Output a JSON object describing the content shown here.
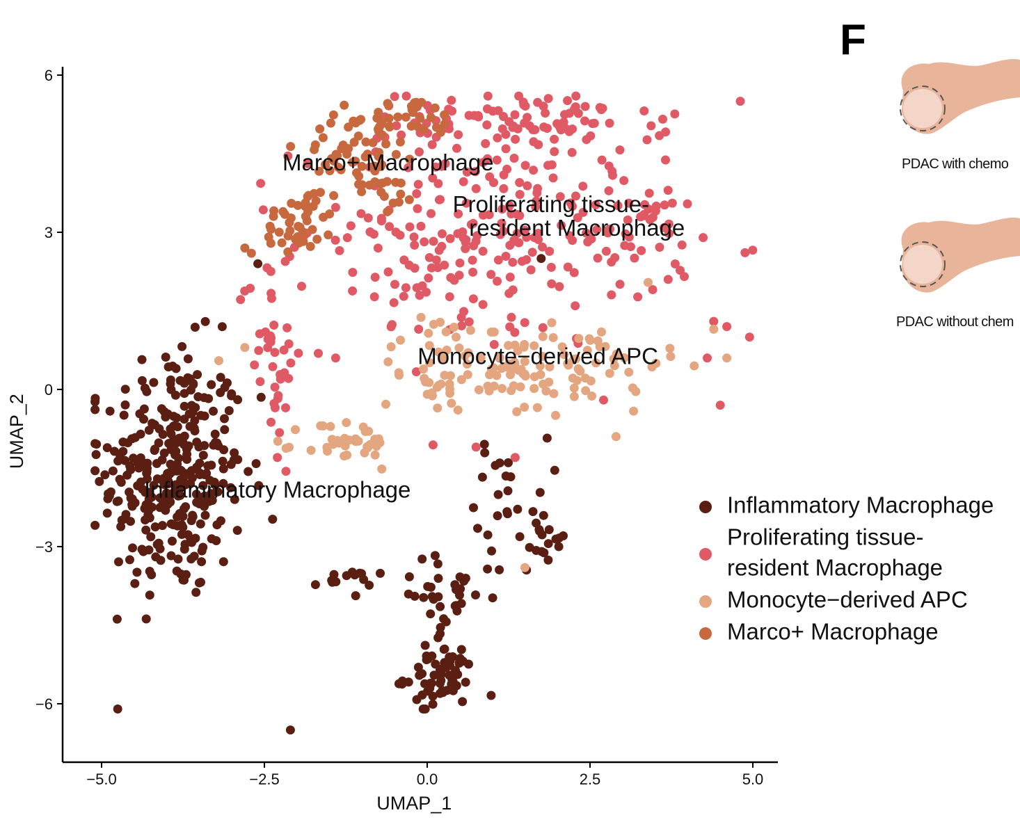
{
  "chart_data": {
    "type": "scatter",
    "title": "",
    "xlabel": "UMAP_1",
    "ylabel": "UMAP_2",
    "xlim": [
      -5.5,
      5.5
    ],
    "ylim": [
      -7.3,
      6.2
    ],
    "x_ticks": [
      -5.0,
      -2.5,
      0.0,
      2.5,
      5.0
    ],
    "x_tick_labels": [
      "−5.0",
      "−2.5",
      "0.0",
      "2.5",
      "5.0"
    ],
    "y_ticks": [
      6,
      3,
      0,
      -3,
      -6
    ],
    "y_tick_labels": [
      "6",
      "3",
      "0",
      "−3",
      "−6"
    ],
    "grid": false,
    "legend_position": "right",
    "series": [
      {
        "name": "Inflammatory Macrophage",
        "color": "#5a1e12",
        "regions": [
          {
            "cx": -3.9,
            "cy": -1.6,
            "sx": 0.55,
            "sy": 1.2,
            "n": 330
          },
          {
            "cx": 1.3,
            "cy": -2.0,
            "sx": 0.28,
            "sy": 0.55,
            "n": 28
          },
          {
            "cx": 1.85,
            "cy": -3.0,
            "sx": 0.2,
            "sy": 0.25,
            "n": 12
          },
          {
            "cx": -1.3,
            "cy": -3.65,
            "sx": 0.22,
            "sy": 0.1,
            "n": 14
          },
          {
            "cx": 0.2,
            "cy": -5.5,
            "sx": 0.28,
            "sy": 0.3,
            "n": 55
          },
          {
            "cx": 0.25,
            "cy": -4.6,
            "sx": 0.12,
            "sy": 0.4,
            "n": 18
          },
          {
            "cx": 0.4,
            "cy": -3.7,
            "sx": 0.7,
            "sy": 0.25,
            "n": 22
          }
        ],
        "points": [
          [
            -2.1,
            -6.5
          ],
          [
            1.75,
            2.5
          ],
          [
            -2.6,
            2.4
          ],
          [
            -2.55,
            -0.15
          ]
        ]
      },
      {
        "name": "Proliferating tissue-\nresident Macrophage",
        "color": "#e05a66",
        "regions": [
          {
            "cx": 1.5,
            "cy": 5.1,
            "sx": 1.1,
            "sy": 0.3,
            "n": 95
          },
          {
            "cx": 0.8,
            "cy": 2.8,
            "sx": 1.4,
            "sy": 1.0,
            "n": 230
          },
          {
            "cx": 3.3,
            "cy": 3.2,
            "sx": 0.4,
            "sy": 0.5,
            "n": 30
          },
          {
            "cx": -2.4,
            "cy": 0.8,
            "sx": 0.25,
            "sy": 0.9,
            "n": 35
          }
        ],
        "points": [
          [
            4.4,
            1.3
          ],
          [
            4.6,
            1.2
          ],
          [
            4.95,
            1.0
          ],
          [
            4.3,
            0.6
          ],
          [
            4.5,
            -0.3
          ],
          [
            3.7,
            2.1
          ],
          [
            1.35,
            -1.3
          ],
          [
            0.75,
            -1.1
          ],
          [
            -2.3,
            -1.3
          ]
        ]
      },
      {
        "name": "Monocyte−derived APC",
        "color": "#e3a680",
        "regions": [
          {
            "cx": 2.4,
            "cy": 0.5,
            "sx": 0.6,
            "sy": 0.45,
            "n": 60
          },
          {
            "cx": 0.1,
            "cy": 0.5,
            "sx": 0.4,
            "sy": 0.5,
            "n": 40
          },
          {
            "cx": -1.2,
            "cy": -1.05,
            "sx": 0.35,
            "sy": 0.25,
            "n": 38
          },
          {
            "cx": 1.2,
            "cy": 0.3,
            "sx": 0.45,
            "sy": 0.4,
            "n": 35
          }
        ],
        "points": [
          [
            4.1,
            0.45
          ],
          [
            4.6,
            0.6
          ],
          [
            4.4,
            1.15
          ],
          [
            2.9,
            -0.9
          ],
          [
            1.5,
            -3.4
          ],
          [
            -3.2,
            0.55
          ],
          [
            -2.8,
            0.8
          ]
        ]
      },
      {
        "name": "Marco+ Macrophage",
        "color": "#c8683e",
        "regions": [
          {
            "cx": -1.0,
            "cy": 4.7,
            "sx": 0.45,
            "sy": 0.35,
            "n": 45
          },
          {
            "cx": -0.2,
            "cy": 5.15,
            "sx": 0.35,
            "sy": 0.2,
            "n": 30
          },
          {
            "cx": -2.0,
            "cy": 3.2,
            "sx": 0.25,
            "sy": 0.3,
            "n": 38
          },
          {
            "cx": -0.6,
            "cy": 3.9,
            "sx": 0.2,
            "sy": 0.25,
            "n": 18
          },
          {
            "cx": -1.6,
            "cy": 3.8,
            "sx": 0.2,
            "sy": 0.4,
            "n": 12
          }
        ],
        "points": [
          [
            -2.8,
            2.7
          ],
          [
            -2.7,
            2.6
          ]
        ]
      }
    ],
    "annotations": [
      {
        "text": "Marco+ Macrophage",
        "x": -0.6,
        "y": 4.3
      },
      {
        "text": "Proliferating tissue-",
        "x": 1.9,
        "y": 3.5
      },
      {
        "text": "resident Macrophage",
        "x": 2.3,
        "y": 3.05
      },
      {
        "text": "Monocyte−derived APC",
        "x": 1.7,
        "y": 0.6
      },
      {
        "text": "Inflammatory Macrophage",
        "x": -2.3,
        "y": -1.95
      }
    ],
    "legend_entries": [
      {
        "lines": [
          "Inflammatory Macrophage"
        ],
        "color": "#5a1e12"
      },
      {
        "lines": [
          "Proliferating tissue-",
          "resident Macrophage"
        ],
        "color": "#e05a66"
      },
      {
        "lines": [
          "Monocyte−derived APC"
        ],
        "color": "#e3a680"
      },
      {
        "lines": [
          "Marco+ Macrophage"
        ],
        "color": "#c8683e"
      }
    ]
  },
  "panel": {
    "letter": "F",
    "schematics": [
      {
        "caption": "PDAC with chemo"
      },
      {
        "caption": "PDAC without chem"
      }
    ],
    "pancreas_color": "#e8b49a",
    "tumor_color": "#f3d6c8"
  }
}
